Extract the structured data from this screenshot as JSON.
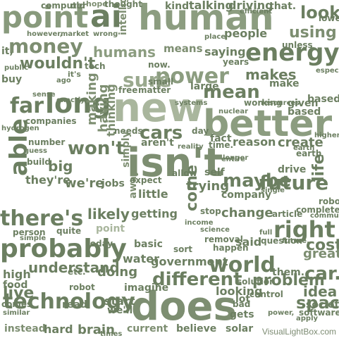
{
  "watermark": "VisualLightBox.com",
  "colors": {
    "dark": "#6c7f61",
    "mid": "#8c9d80",
    "light": "#b7c3ac",
    "pale": "#d6ddcf"
  },
  "words": [
    "point",
    "ai",
    "human",
    "look",
    "energy",
    "using",
    "money",
    "wouldn't",
    "humans",
    "saying",
    "means",
    "power",
    "sure",
    "makes",
    "far",
    "long",
    "new",
    "better",
    "mean",
    "cars",
    "won't",
    "isn't",
    "able",
    "big",
    "they're",
    "we're",
    "jobs",
    "maybe",
    "future",
    "life",
    "there's",
    "probably",
    "right",
    "cost",
    "world",
    "car.",
    "technology",
    "does",
    "different",
    "problem",
    "doing",
    "idea",
    "great",
    "instead",
    "hard",
    "brain",
    "current",
    "believe",
    "solar",
    "space",
    "start",
    "read",
    "imagine",
    "water",
    "government",
    "getting",
    "likely",
    "change",
    "reason",
    "create",
    "question",
    "point",
    "drive",
    "it,",
    "old",
    "hope",
    "thought",
    "kind",
    "talking",
    "driving",
    "that.",
    "computer",
    "intelligence",
    "however,",
    "market",
    "wrong",
    "tech",
    "it's",
    "people",
    "public",
    "small",
    "now.",
    "years",
    "place",
    "buy",
    "make",
    "ago",
    "making",
    "having",
    "thinking",
    "free",
    "matter",
    "large",
    "working",
    "given",
    "based",
    "companies",
    "sense",
    "exactly",
    "number",
    "needs",
    "fact",
    "time.",
    "based",
    "hydrogen",
    "guess",
    "build",
    "simply",
    "aren't",
    "day",
    "reality",
    "entire",
    "self",
    "single",
    "earth",
    "higher",
    "robots",
    "completely",
    "article",
    "community",
    "away",
    "little",
    "stop",
    "income",
    "trying",
    "company",
    "come",
    "person",
    "quite",
    "simple",
    "full",
    "basic",
    "them.",
    "said",
    "high",
    "food",
    "comes",
    "similar",
    "live",
    "understand",
    "etc.",
    "sort",
    "today",
    "happen",
    "removal",
    "control",
    "apply",
    "software",
    "society",
    "bad",
    "lot",
    "looking",
    "gets",
    "we'll",
    "robot",
    "solution",
    "power,",
    "times",
    "longer",
    "unless",
    "especially",
    "nuclear",
    "resources",
    "science",
    "future.",
    "allow",
    "earth",
    "lower",
    "systems",
    "expect",
    "efficient",
    "automation",
    "computers"
  ]
}
